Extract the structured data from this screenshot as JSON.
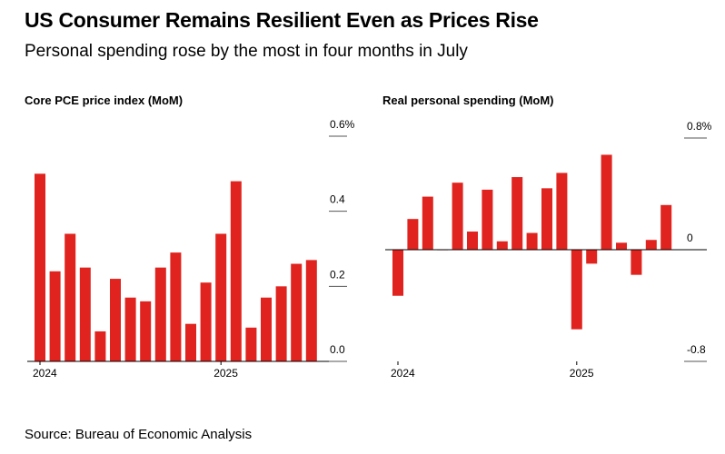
{
  "header": {
    "title": "US Consumer Remains Resilient Even as Prices Rise",
    "subtitle": "Personal spending rose by the most in four months in July"
  },
  "footer": {
    "source": "Source: Bureau of Economic Analysis"
  },
  "colors": {
    "bar": "#e0231e",
    "axis": "#000000",
    "tick_line": "#555555"
  },
  "chart_data": [
    {
      "type": "bar",
      "title": "Core PCE price index (MoM)",
      "x_tick_labels": [
        "2024",
        "2025"
      ],
      "x_tick_positions": [
        "Jan 2024",
        "Jan 2025"
      ],
      "categories": [
        "Jan 2024",
        "Feb 2024",
        "Mar 2024",
        "Apr 2024",
        "May 2024",
        "Jun 2024",
        "Jul 2024",
        "Aug 2024",
        "Sep 2024",
        "Oct 2024",
        "Nov 2024",
        "Dec 2024",
        "Jan 2025",
        "Feb 2025",
        "Mar 2025",
        "Apr 2025",
        "May 2025",
        "Jun 2025",
        "Jul 2025"
      ],
      "values": [
        0.5,
        0.24,
        0.34,
        0.25,
        0.08,
        0.22,
        0.17,
        0.16,
        0.25,
        0.29,
        0.1,
        0.21,
        0.34,
        0.48,
        0.09,
        0.17,
        0.2,
        0.26,
        0.27
      ],
      "ylim": [
        0,
        0.6
      ],
      "y_ticks": [
        0,
        0.2,
        0.4,
        0.6
      ],
      "y_tick_labels": [
        "0.0",
        "0.2",
        "0.4",
        "0.6%"
      ],
      "grid": false
    },
    {
      "type": "bar",
      "title": "Real personal spending (MoM)",
      "x_tick_labels": [
        "2024",
        "2025"
      ],
      "x_tick_positions": [
        "Jan 2024",
        "Jan 2025"
      ],
      "categories": [
        "Jan 2024",
        "Feb 2024",
        "Mar 2024",
        "Apr 2024",
        "May 2024",
        "Jun 2024",
        "Jul 2024",
        "Aug 2024",
        "Sep 2024",
        "Oct 2024",
        "Nov 2024",
        "Dec 2024",
        "Jan 2025",
        "Feb 2025",
        "Mar 2025",
        "Apr 2025",
        "May 2025",
        "Jun 2025",
        "Jul 2025"
      ],
      "values": [
        -0.33,
        0.22,
        0.38,
        0.0,
        0.48,
        0.13,
        0.43,
        0.06,
        0.52,
        0.12,
        0.44,
        0.55,
        -0.57,
        -0.1,
        0.68,
        0.05,
        -0.18,
        0.07,
        0.32
      ],
      "ylim": [
        -0.8,
        0.8
      ],
      "y_ticks": [
        -0.8,
        0,
        0.8
      ],
      "y_tick_labels": [
        "-0.8",
        "0",
        "0.8%"
      ],
      "grid": false
    }
  ]
}
